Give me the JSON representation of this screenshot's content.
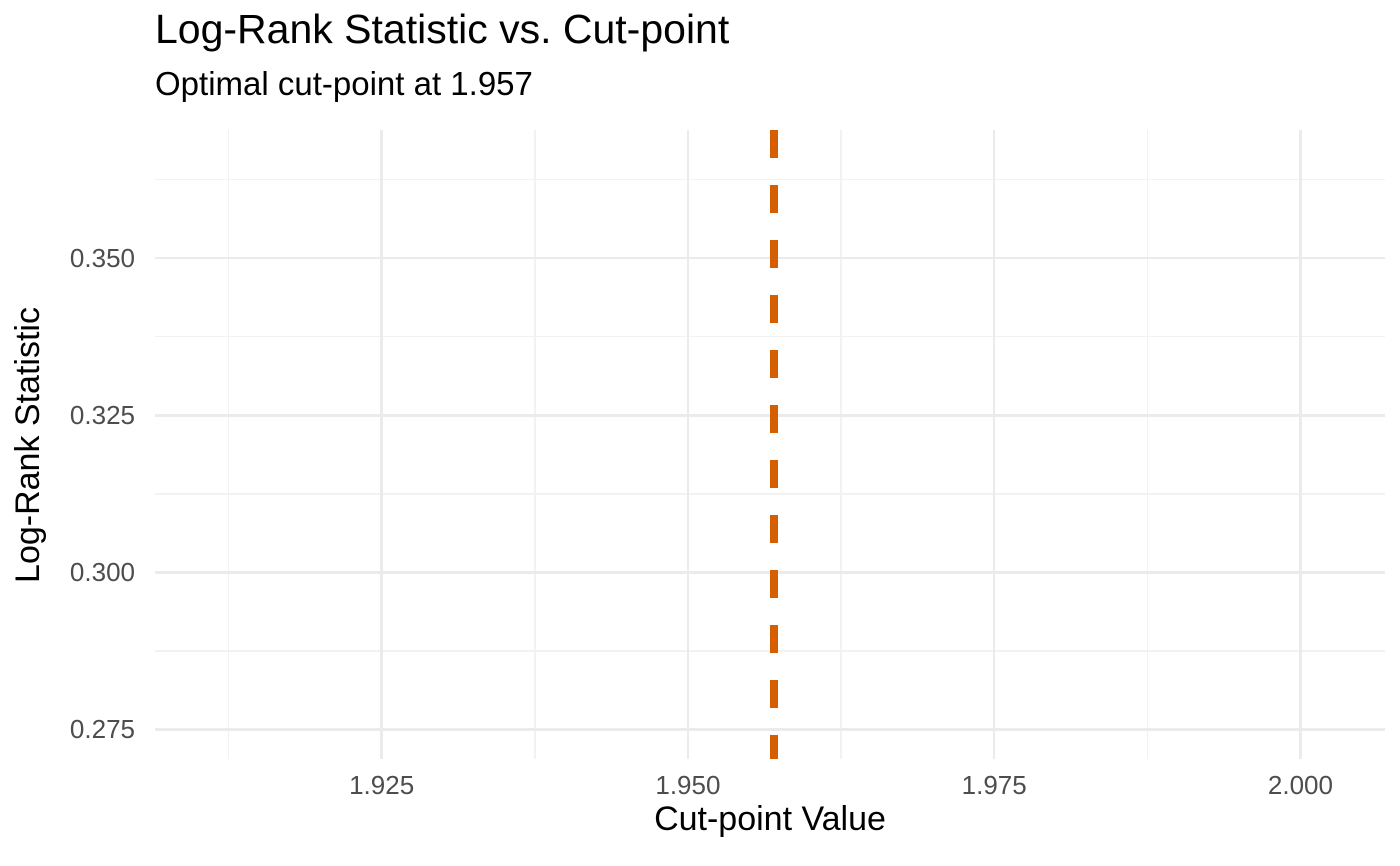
{
  "title": "Log-Rank Statistic vs. Cut-point",
  "subtitle": "Optimal cut-point at 1.957",
  "chart_data": {
    "type": "line",
    "title": "Log-Rank Statistic vs. Cut-point",
    "subtitle": "Optimal cut-point at 1.957",
    "xlabel": "Cut-point Value",
    "ylabel": "Log-Rank Statistic",
    "x_ticks": [
      1.925,
      1.95,
      1.975,
      2.0
    ],
    "x_tick_labels": [
      "1.925",
      "1.950",
      "1.975",
      "2.000"
    ],
    "x_minor_ticks": [
      1.9125,
      1.9375,
      1.9625,
      1.9875
    ],
    "y_ticks": [
      0.275,
      0.3,
      0.325,
      0.35
    ],
    "y_tick_labels": [
      "0.275",
      "0.300",
      "0.325",
      "0.350"
    ],
    "y_minor_ticks": [
      0.2875,
      0.3125,
      0.3375,
      0.3625
    ],
    "xlim": [
      1.9065,
      2.0069
    ],
    "ylim": [
      0.2703,
      0.3704
    ],
    "grid": true,
    "legend": false,
    "series": [],
    "optimal_cutpoint": 1.957,
    "vline": {
      "x": 1.957,
      "style": "dashed",
      "color": "#D55E00"
    }
  },
  "colors": {
    "background": "#FFFFFF",
    "grid_major": "#EBEBEB",
    "grid_minor": "#F2F2F2",
    "vline": "#D55E00",
    "tick_label": "#4D4D4D",
    "text": "#000000"
  }
}
